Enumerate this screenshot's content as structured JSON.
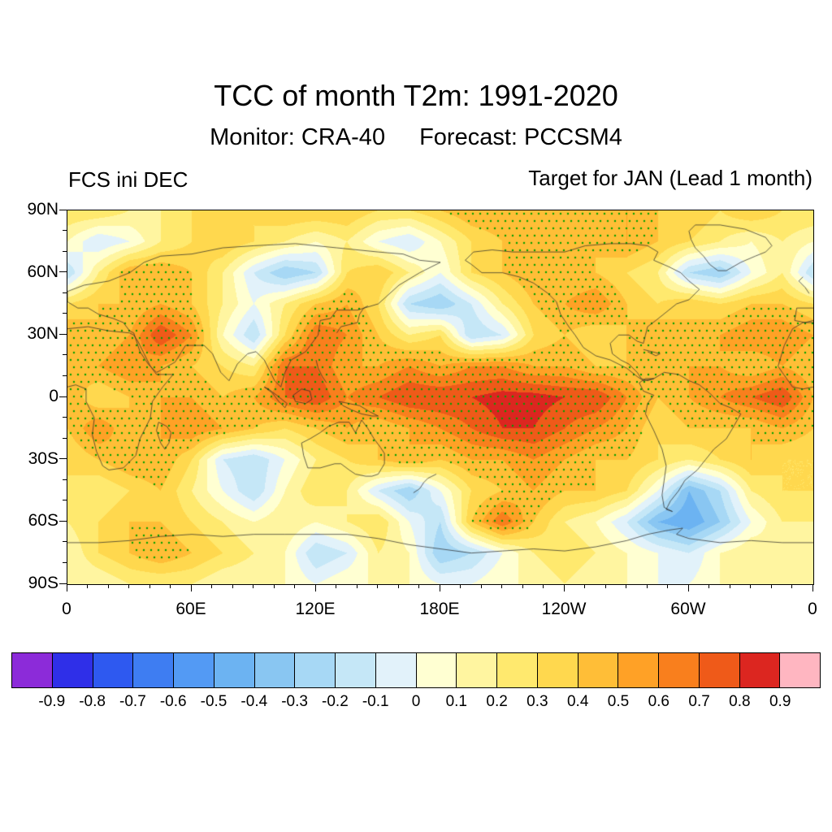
{
  "figure": {
    "title": "TCC of month T2m: 1991-2020",
    "monitor_label": "Monitor: CRA-40",
    "forecast_label": "Forecast: PCCSM4",
    "left_annotation": "FCS ini DEC",
    "right_annotation": "Target for JAN (Lead 1 month)"
  },
  "chart_data": {
    "type": "heatmap",
    "title": "TCC of month T2m: 1991-2020",
    "subtitle": "Monitor: CRA-40   Forecast: PCCSM4",
    "left_label": "FCS ini DEC",
    "right_label": "Target for JAN (Lead 1 month)",
    "x_tick_labels": [
      "0",
      "60E",
      "120E",
      "180E",
      "120W",
      "60W",
      "0"
    ],
    "x_tick_lons": [
      0,
      60,
      120,
      180,
      240,
      300,
      360
    ],
    "y_tick_labels": [
      "90N",
      "60N",
      "30N",
      "0",
      "30S",
      "60S",
      "90S"
    ],
    "y_tick_lats": [
      90,
      60,
      30,
      0,
      -30,
      -60,
      -90
    ],
    "lon_range": [
      0,
      360
    ],
    "lat_range": [
      -90,
      90
    ],
    "levels": [
      -0.9,
      -0.8,
      -0.7,
      -0.6,
      -0.5,
      -0.4,
      -0.3,
      -0.2,
      -0.1,
      0,
      0.1,
      0.2,
      0.3,
      0.4,
      0.5,
      0.6,
      0.7,
      0.8,
      0.9
    ],
    "colors": [
      "#8C2BD9",
      "#2F2FE8",
      "#2E59F0",
      "#3E7DF2",
      "#539AF4",
      "#6CB3F2",
      "#89C6F2",
      "#A7D8F5",
      "#C5E7F7",
      "#E2F2FA",
      "#FFFFD2",
      "#FFF5A0",
      "#FFE96E",
      "#FFD84E",
      "#FFBE37",
      "#FFA126",
      "#F97F1D",
      "#EF5A19",
      "#DC2620",
      "#FFB6C1"
    ],
    "colorbar_tick_labels": [
      "-0.9",
      "-0.8",
      "-0.7",
      "-0.6",
      "-0.5",
      "-0.4",
      "-0.3",
      "-0.2",
      "-0.1",
      "0",
      "0.1",
      "0.2",
      "0.3",
      "0.4",
      "0.5",
      "0.6",
      "0.7",
      "0.8",
      "0.9"
    ],
    "stipple": {
      "color": "#00A000",
      "threshold": 0.4
    },
    "grid": {
      "lon_start": 0,
      "lon_step": 15,
      "n_lon": 25,
      "lat_start": 90,
      "lat_step": -15,
      "n_lat": 13,
      "values": [
        [
          0.3,
          0.3,
          0.2,
          0.2,
          0.3,
          0.3,
          0.3,
          0.4,
          0.4,
          0.4,
          0.3,
          0.3,
          0.4,
          0.5,
          0.5,
          0.4,
          0.4,
          0.5,
          0.5,
          0.4,
          0.4,
          0.3,
          0.4,
          0.3,
          0.3
        ],
        [
          0.1,
          -0.1,
          0.0,
          0.2,
          0.3,
          0.4,
          0.3,
          0.2,
          0.1,
          0.2,
          0.0,
          -0.1,
          0.1,
          0.3,
          0.4,
          0.5,
          0.5,
          0.4,
          0.5,
          0.4,
          0.3,
          0.2,
          0.1,
          0.2,
          0.1
        ],
        [
          -0.2,
          0.2,
          0.5,
          0.5,
          0.4,
          0.2,
          -0.1,
          -0.3,
          -0.2,
          0.3,
          0.4,
          0.2,
          0.0,
          0.3,
          0.4,
          0.5,
          0.4,
          0.4,
          0.3,
          0.2,
          -0.2,
          -0.3,
          0.0,
          0.2,
          -0.2
        ],
        [
          0.3,
          0.4,
          0.4,
          0.5,
          0.4,
          0.2,
          0.0,
          0.2,
          0.4,
          0.5,
          0.3,
          -0.2,
          -0.3,
          -0.1,
          0.2,
          0.4,
          0.5,
          0.6,
          0.4,
          0.3,
          0.4,
          0.3,
          0.4,
          0.4,
          0.3
        ],
        [
          0.5,
          0.4,
          0.5,
          0.8,
          0.6,
          0.1,
          -0.2,
          0.3,
          0.7,
          0.6,
          0.4,
          0.2,
          0.3,
          -0.2,
          -0.1,
          0.3,
          0.4,
          0.3,
          0.4,
          0.5,
          0.4,
          0.5,
          0.6,
          0.6,
          0.5
        ],
        [
          0.4,
          0.5,
          0.6,
          0.5,
          0.4,
          0.3,
          0.2,
          0.7,
          0.7,
          0.5,
          0.5,
          0.6,
          0.5,
          0.6,
          0.6,
          0.5,
          0.5,
          0.4,
          0.4,
          0.4,
          0.5,
          0.5,
          0.4,
          0.5,
          0.4
        ],
        [
          0.5,
          0.3,
          0.4,
          0.5,
          0.5,
          0.4,
          0.5,
          0.7,
          0.8,
          0.6,
          0.7,
          0.8,
          0.8,
          0.8,
          0.85,
          0.85,
          0.8,
          0.8,
          0.6,
          0.4,
          0.5,
          0.6,
          0.7,
          0.8,
          0.5
        ],
        [
          0.4,
          0.6,
          0.4,
          0.5,
          0.6,
          0.5,
          0.4,
          0.3,
          0.4,
          0.5,
          0.4,
          0.5,
          0.6,
          0.7,
          0.8,
          0.8,
          0.7,
          0.6,
          0.5,
          0.3,
          0.4,
          0.4,
          0.4,
          0.5,
          0.4
        ],
        [
          0.3,
          0.4,
          0.5,
          0.5,
          0.3,
          -0.1,
          -0.2,
          0.0,
          0.2,
          0.3,
          0.4,
          0.5,
          0.4,
          0.5,
          0.5,
          0.6,
          0.5,
          0.4,
          0.4,
          0.3,
          0.2,
          0.3,
          0.4,
          0.3,
          0.3
        ],
        [
          0.3,
          0.2,
          0.3,
          0.4,
          0.2,
          0.0,
          -0.2,
          0.1,
          0.3,
          0.2,
          -0.1,
          -0.3,
          0.0,
          0.3,
          0.4,
          0.5,
          0.4,
          0.4,
          0.3,
          0.0,
          -0.4,
          -0.2,
          0.2,
          0.3,
          0.3
        ],
        [
          0.2,
          0.3,
          0.4,
          0.4,
          0.3,
          0.2,
          0.1,
          0.2,
          0.1,
          0.2,
          0.3,
          0.0,
          -0.2,
          0.4,
          0.7,
          0.4,
          0.2,
          0.1,
          -0.1,
          -0.4,
          -0.5,
          -0.3,
          0.0,
          0.2,
          0.2
        ],
        [
          0.1,
          0.3,
          0.4,
          0.5,
          0.4,
          0.3,
          0.2,
          0.1,
          -0.2,
          -0.1,
          0.2,
          0.1,
          -0.3,
          -0.2,
          0.0,
          0.2,
          0.3,
          0.2,
          0.1,
          0.0,
          -0.1,
          0.1,
          0.2,
          0.1,
          0.1
        ],
        [
          0.1,
          0.1,
          0.2,
          0.2,
          0.2,
          0.1,
          0.1,
          0.1,
          0.0,
          0.1,
          0.1,
          0.1,
          0.0,
          0.0,
          0.1,
          0.1,
          0.2,
          0.1,
          0.1,
          0.0,
          0.0,
          0.1,
          0.1,
          0.1,
          0.1
        ]
      ]
    }
  }
}
